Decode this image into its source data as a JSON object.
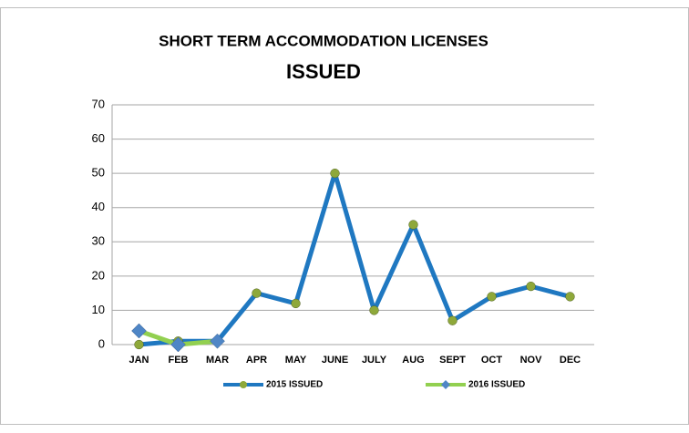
{
  "chart_data": {
    "type": "line",
    "title": [
      "SHORT TERM ACCOMMODATION LICENSES",
      "ISSUED"
    ],
    "categories": [
      "JAN",
      "FEB",
      "MAR",
      "APR",
      "MAY",
      "JUNE",
      "JULY",
      "AUG",
      "SEPT",
      "OCT",
      "NOV",
      "DEC"
    ],
    "series": [
      {
        "name": "2015 ISSUED",
        "color": "#1f78c1",
        "marker_color": "#8ea83a",
        "marker": "circle",
        "values": [
          0,
          1,
          1,
          15,
          12,
          50,
          10,
          35,
          7,
          14,
          17,
          14
        ]
      },
      {
        "name": "2016 ISSUED",
        "color": "#92d050",
        "marker_color": "#4f86c6",
        "marker": "diamond",
        "values": [
          4,
          0,
          1,
          null,
          null,
          null,
          null,
          null,
          null,
          null,
          null,
          null
        ]
      }
    ],
    "ylim": [
      0,
      70
    ],
    "yticks": [
      0,
      10,
      20,
      30,
      40,
      50,
      60,
      70
    ],
    "grid": true,
    "legend": "bottom"
  }
}
